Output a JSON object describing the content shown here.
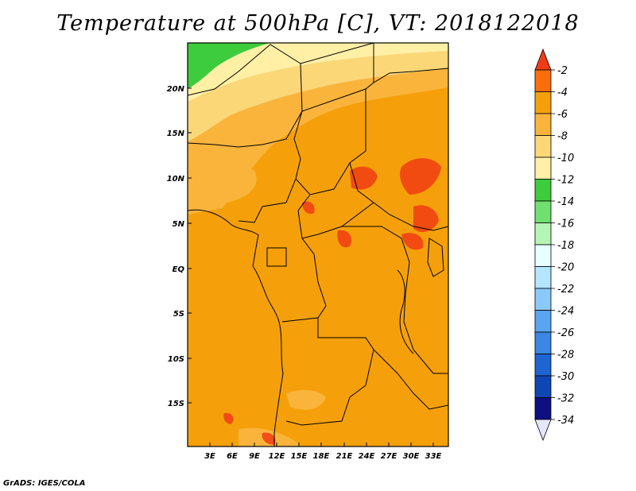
{
  "title": "Temperature at 500hPa [C], VT: 2018122018",
  "credit": "GrADS: IGES/COLA",
  "map": {
    "lat_labels": [
      "20N",
      "15N",
      "10N",
      "5N",
      "EQ",
      "5S",
      "10S",
      "15S"
    ],
    "lon_labels": [
      "3E",
      "6E",
      "9E",
      "12E",
      "15E",
      "18E",
      "21E",
      "24E",
      "27E",
      "30E",
      "33E"
    ]
  },
  "legend": {
    "labels": [
      "-2",
      "-4",
      "-6",
      "-8",
      "-10",
      "-12",
      "-14",
      "-16",
      "-18",
      "-20",
      "-22",
      "-24",
      "-26",
      "-28",
      "-30",
      "-32",
      "-34"
    ],
    "colors": [
      "#f03c14",
      "#fa6e0a",
      "#f5a00a",
      "#fab43c",
      "#fbd778",
      "#fff0a6",
      "#3dcc3d",
      "#70e070",
      "#b4f5b4",
      "#e6ffff",
      "#b4e6ff",
      "#8cc8fa",
      "#5aa5f0",
      "#3c87e6",
      "#1e64d2",
      "#0f46b4",
      "#0f0f82",
      "#e6e6ff"
    ]
  }
}
